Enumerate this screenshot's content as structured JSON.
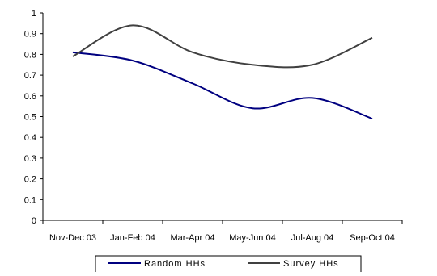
{
  "chart_data": {
    "type": "line",
    "categories": [
      "Nov-Dec 03",
      "Jan-Feb 04",
      "Mar-Apr 04",
      "May-Jun 04",
      "Jul-Aug 04",
      "Sep-Oct 04"
    ],
    "ylim": [
      0,
      1
    ],
    "yticks": [
      "0",
      "0.1",
      "0.2",
      "0.3",
      "0.4",
      "0.5",
      "0.6",
      "0.7",
      "0.8",
      "0.9",
      "1"
    ],
    "grid": false,
    "legend_position": "bottom",
    "series": [
      {
        "name": "Random HHs",
        "color": "#000080",
        "values": [
          0.81,
          0.77,
          0.66,
          0.54,
          0.59,
          0.49
        ]
      },
      {
        "name": "Survey HHs",
        "color": "#404040",
        "values": [
          0.79,
          0.94,
          0.81,
          0.75,
          0.75,
          0.88
        ]
      }
    ]
  }
}
